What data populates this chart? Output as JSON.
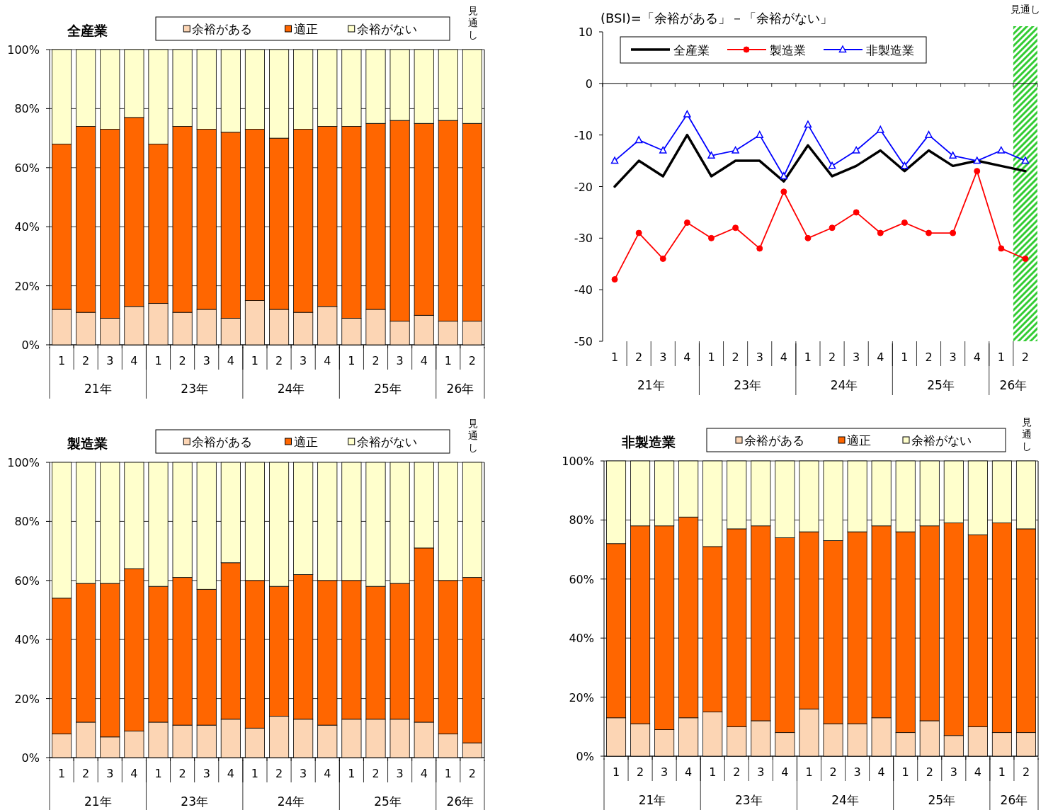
{
  "chart_data": [
    {
      "type": "bar",
      "title": "全産業",
      "stacked": true,
      "categories": [
        "1",
        "2",
        "3",
        "4",
        "1",
        "2",
        "3",
        "4",
        "1",
        "2",
        "3",
        "4",
        "1",
        "2",
        "3",
        "4",
        "1",
        "2"
      ],
      "series": [
        {
          "name": "余裕がある",
          "color": "#fcd5b4",
          "values": [
            12,
            11,
            9,
            13,
            14,
            11,
            12,
            9,
            15,
            12,
            11,
            13,
            9,
            12,
            8,
            10,
            8,
            8
          ]
        },
        {
          "name": "適正",
          "color": "#ff6600",
          "values": [
            56,
            63,
            64,
            64,
            54,
            63,
            61,
            63,
            58,
            58,
            62,
            61,
            65,
            63,
            68,
            65,
            68,
            67
          ]
        },
        {
          "name": "余裕がない",
          "color": "#ffffcc",
          "values": [
            32,
            26,
            27,
            23,
            32,
            26,
            27,
            28,
            27,
            30,
            27,
            26,
            26,
            25,
            24,
            25,
            24,
            25
          ]
        }
      ],
      "ylim": [
        0,
        100
      ],
      "yticks": [
        {
          "value": 0,
          "label": "0%"
        },
        {
          "value": 20,
          "label": "20%"
        },
        {
          "value": 40,
          "label": "40%"
        },
        {
          "value": 60,
          "label": "60%"
        },
        {
          "value": 80,
          "label": "80%"
        },
        {
          "value": 100,
          "label": "100%"
        }
      ],
      "grid": "y",
      "legend": "top",
      "annotations": [
        "21年",
        "23年",
        "24年",
        "25年",
        "26年",
        {
          "text": "見通し"
        }
      ]
    },
    {
      "type": "line",
      "title": "(BSI)=「余裕がある」－「余裕がない」",
      "categories": [
        "1",
        "2",
        "3",
        "4",
        "1",
        "2",
        "3",
        "4",
        "1",
        "2",
        "3",
        "4",
        "1",
        "2",
        "3",
        "4",
        "1",
        "2"
      ],
      "series": [
        {
          "name": "全産業",
          "color": "#000000",
          "marker": "none",
          "values": [
            -20,
            -15,
            -18,
            -10,
            -18,
            -15,
            -15,
            -19,
            -12,
            -18,
            -16,
            -13,
            -17,
            -13,
            -16,
            -15,
            -16,
            -17
          ]
        },
        {
          "name": "製造業",
          "color": "#ff0000",
          "marker": "circle",
          "values": [
            -38,
            -29,
            -34,
            -27,
            -30,
            -28,
            -32,
            -21,
            -30,
            -28,
            -25,
            -29,
            -27,
            -29,
            -29,
            -17,
            -32,
            -34
          ]
        },
        {
          "name": "非製造業",
          "color": "#0000ff",
          "marker": "triangle",
          "values": [
            -15,
            -11,
            -13,
            -6,
            -14,
            -13,
            -10,
            -18,
            -8,
            -16,
            -13,
            -9,
            -16,
            -10,
            -14,
            -15,
            -13,
            -15
          ]
        }
      ],
      "ylim": [
        -50,
        10
      ],
      "yticks": [
        -50,
        -40,
        -30,
        -20,
        -10,
        0,
        10
      ],
      "legend": "top left",
      "annotations": [
        "21年",
        "23年",
        "24年",
        "25年",
        "26年",
        {
          "text": "見通し"
        }
      ]
    },
    {
      "type": "bar",
      "title": "製造業",
      "stacked": true,
      "categories": [
        "1",
        "2",
        "3",
        "4",
        "1",
        "2",
        "3",
        "4",
        "1",
        "2",
        "3",
        "4",
        "1",
        "2",
        "3",
        "4",
        "1",
        "2"
      ],
      "series": [
        {
          "name": "余裕がある",
          "color": "#fcd5b4",
          "values": [
            8,
            12,
            7,
            9,
            12,
            11,
            11,
            13,
            10,
            14,
            13,
            11,
            13,
            13,
            13,
            12,
            8,
            5
          ]
        },
        {
          "name": "適正",
          "color": "#ff6600",
          "values": [
            46,
            47,
            52,
            55,
            46,
            50,
            46,
            53,
            50,
            44,
            49,
            49,
            47,
            45,
            46,
            59,
            52,
            56
          ]
        },
        {
          "name": "余裕がない",
          "color": "#ffffcc",
          "values": [
            46,
            41,
            41,
            36,
            42,
            39,
            43,
            34,
            40,
            42,
            38,
            40,
            40,
            42,
            41,
            29,
            40,
            39
          ]
        }
      ],
      "ylim": [
        0,
        100
      ],
      "yticks": [
        {
          "value": 0,
          "label": "0%"
        },
        {
          "value": 20,
          "label": "20%"
        },
        {
          "value": 40,
          "label": "40%"
        },
        {
          "value": 60,
          "label": "60%"
        },
        {
          "value": 80,
          "label": "80%"
        },
        {
          "value": 100,
          "label": "100%"
        }
      ],
      "grid": "y",
      "legend": "top",
      "annotations": [
        "21年",
        "23年",
        "24年",
        "25年",
        "26年",
        {
          "text": "見通し"
        }
      ]
    },
    {
      "type": "bar",
      "title": "非製造業",
      "stacked": true,
      "categories": [
        "1",
        "2",
        "3",
        "4",
        "1",
        "2",
        "3",
        "4",
        "1",
        "2",
        "3",
        "4",
        "1",
        "2",
        "3",
        "4",
        "1",
        "2"
      ],
      "series": [
        {
          "name": "余裕がある",
          "color": "#fcd5b4",
          "values": [
            13,
            11,
            9,
            13,
            15,
            10,
            12,
            8,
            16,
            11,
            11,
            13,
            8,
            12,
            7,
            10,
            8,
            8
          ]
        },
        {
          "name": "適正",
          "color": "#ff6600",
          "values": [
            59,
            67,
            69,
            68,
            56,
            67,
            66,
            66,
            60,
            62,
            65,
            65,
            68,
            66,
            72,
            65,
            71,
            69
          ]
        },
        {
          "name": "余裕がない",
          "color": "#ffffcc",
          "values": [
            28,
            22,
            22,
            19,
            29,
            23,
            22,
            26,
            24,
            27,
            24,
            22,
            24,
            22,
            21,
            25,
            21,
            23
          ]
        }
      ],
      "ylim": [
        0,
        100
      ],
      "yticks": [
        {
          "value": 0,
          "label": "0%"
        },
        {
          "value": 20,
          "label": "20%"
        },
        {
          "value": 40,
          "label": "40%"
        },
        {
          "value": 60,
          "label": "60%"
        },
        {
          "value": 80,
          "label": "80%"
        },
        {
          "value": 100,
          "label": "100%"
        }
      ],
      "grid": "y",
      "legend": "top",
      "annotations": [
        "21年",
        "23年",
        "24年",
        "25年",
        "26年",
        {
          "text": "見通し"
        }
      ]
    }
  ]
}
